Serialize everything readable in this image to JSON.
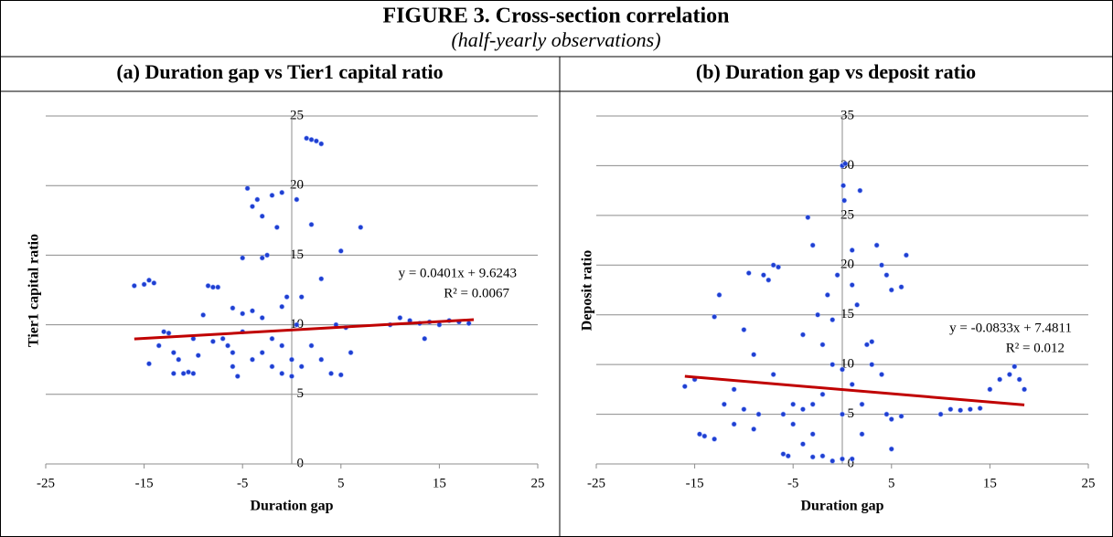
{
  "figure": {
    "title": "FIGURE 3. Cross-section correlation",
    "subtitle": "(half-yearly observations)"
  },
  "chart_data": [
    {
      "type": "scatter",
      "title": "(a) Duration gap vs Tier1 capital ratio",
      "xlabel": "Duration gap",
      "ylabel": "Tier1 capital ratio",
      "color": "#1f3fd0",
      "grid": true,
      "xlim": [
        -25,
        25
      ],
      "xticks": [
        -25,
        -15,
        -5,
        5,
        15,
        25
      ],
      "ylim": [
        0,
        25
      ],
      "yticks": [
        0,
        5,
        10,
        15,
        20,
        25
      ],
      "x": [
        -16,
        -15,
        -14.5,
        -14,
        -13,
        -12.5,
        -12,
        -11.5,
        -11,
        -10.5,
        -10,
        -9.5,
        -9,
        -8.5,
        -8,
        -7.5,
        -14.5,
        -13.5,
        -12,
        -7,
        -6.5,
        -6,
        -5.5,
        -5,
        -4.5,
        -4,
        -3.5,
        -3,
        -2.5,
        -2,
        -1.5,
        -1,
        -0.5,
        -5,
        -4,
        -3,
        -2,
        -1,
        0,
        0.5,
        1,
        1.5,
        2,
        2.5,
        3,
        0.5,
        2,
        3,
        5,
        7,
        -6,
        -5,
        -4,
        -3,
        -2,
        -1,
        0,
        1,
        2,
        3,
        4,
        5,
        5.5,
        6,
        4.5,
        10,
        11,
        12,
        13,
        13.5,
        14,
        15,
        16,
        17,
        18,
        -6,
        -1,
        -3,
        -8,
        -10
      ],
      "values": [
        12.8,
        12.9,
        13.2,
        13,
        9.5,
        9.4,
        8,
        7.5,
        6.5,
        6.6,
        6.5,
        7.8,
        10.7,
        12.8,
        12.7,
        12.7,
        7.2,
        8.5,
        6.5,
        9,
        8.5,
        7,
        6.3,
        14.8,
        19.8,
        18.5,
        19,
        17.8,
        15,
        19.3,
        17,
        19.5,
        12,
        10.8,
        11,
        10.5,
        9,
        8.5,
        7.5,
        10,
        12,
        23.4,
        23.3,
        23.2,
        23,
        19,
        17.2,
        13.3,
        15.3,
        17,
        8,
        9.5,
        7.5,
        8,
        7,
        6.5,
        6.3,
        7,
        8.5,
        7.5,
        6.5,
        6.4,
        9.8,
        8,
        10,
        10,
        10.5,
        10.3,
        10.1,
        9,
        10.2,
        10,
        10.3,
        10.2,
        10.1,
        11.2,
        11.3,
        14.8,
        8.8,
        9
      ],
      "trendline": {
        "slope": 0.0401,
        "intercept": 9.6243,
        "xrange": [
          -16,
          18.5
        ],
        "color": "#c00000"
      },
      "annotation": [
        "y = 0.0401x + 9.6243",
        "R² = 0.0067"
      ]
    },
    {
      "type": "scatter",
      "title": "(b) Duration gap vs deposit ratio",
      "xlabel": "Duration gap",
      "ylabel": "Deposit ratio",
      "color": "#1f3fd0",
      "grid": true,
      "xlim": [
        -25,
        25
      ],
      "xticks": [
        -25,
        -15,
        -5,
        5,
        15,
        25
      ],
      "ylim": [
        0,
        35
      ],
      "yticks": [
        0,
        5,
        10,
        15,
        20,
        25,
        30,
        35
      ],
      "x": [
        -16,
        -15,
        -14.5,
        -14,
        -13,
        -12.5,
        -13,
        -12,
        -11,
        -10,
        -9.5,
        -9,
        -8.5,
        -8,
        -7.5,
        -7,
        -6.5,
        -6,
        -5.5,
        -5,
        -4,
        -3.5,
        -3,
        -2.5,
        -2,
        -1.5,
        -1,
        -0.5,
        0,
        0.3,
        0.1,
        0.2,
        1,
        1,
        1.5,
        1.8,
        0,
        -1,
        -2,
        -3,
        1,
        2,
        2,
        2.5,
        3,
        3.5,
        4,
        4.5,
        5,
        6,
        6.5,
        -6,
        -5,
        -4,
        -3,
        -2,
        -1,
        0,
        1,
        3,
        4,
        4.5,
        5,
        5,
        6,
        10,
        11,
        12,
        13,
        14,
        15,
        16,
        17,
        17.5,
        18,
        18.5,
        -4,
        -3,
        0,
        -9,
        -10,
        -11,
        -7
      ],
      "values": [
        7.8,
        8.5,
        3,
        2.8,
        14.8,
        17,
        2.5,
        6,
        7.5,
        13.5,
        19.2,
        11,
        5,
        19,
        18.5,
        20,
        19.8,
        1,
        0.8,
        4,
        13,
        24.8,
        22,
        15,
        12,
        17,
        14.5,
        19,
        30,
        30.2,
        28,
        26.5,
        21.5,
        18,
        16,
        27.5,
        0.5,
        0.3,
        0.8,
        0.7,
        0.5,
        3,
        6,
        12,
        12.3,
        22,
        20,
        19,
        17.5,
        17.8,
        21,
        5,
        6,
        5.5,
        6,
        7,
        10,
        9.5,
        8,
        10,
        9,
        5,
        4.5,
        1.5,
        4.8,
        5,
        5.5,
        5.4,
        5.5,
        5.6,
        7.5,
        8.5,
        9,
        9.8,
        8.5,
        7.5,
        2,
        3,
        5,
        3.5,
        5.5,
        4,
        9
      ],
      "trendline": {
        "slope": -0.0833,
        "intercept": 7.4811,
        "xrange": [
          -16,
          18.5
        ],
        "color": "#c00000"
      },
      "annotation": [
        "y = -0.0833x + 7.4811",
        "R² = 0.012"
      ]
    }
  ]
}
